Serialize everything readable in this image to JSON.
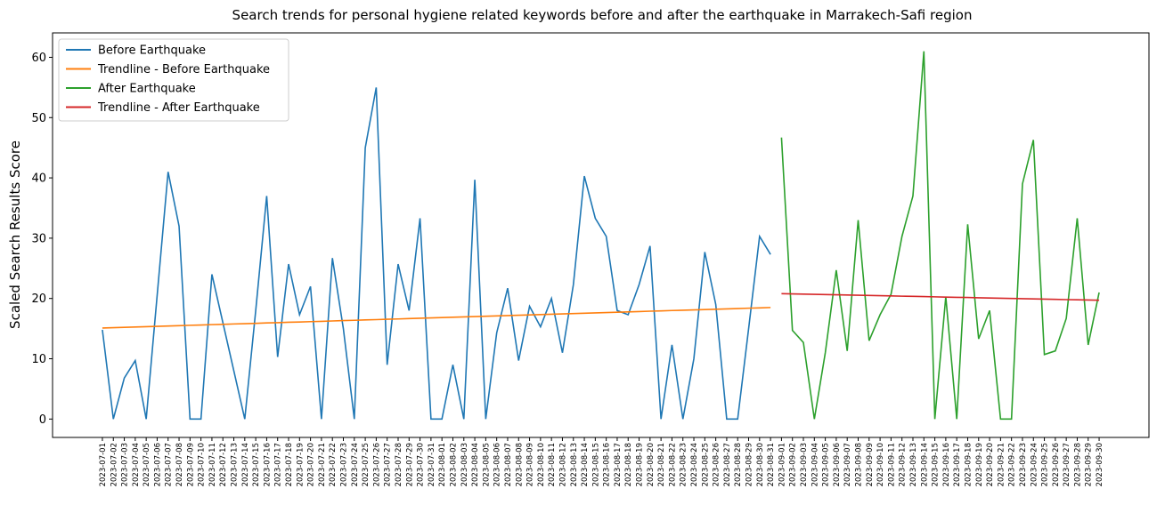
{
  "chart_data": {
    "type": "line",
    "title": "Search trends for personal hygiene related keywords before and after the earthquake in Marrakech-Safi region",
    "y_label": "Scaled Search Results Score",
    "categories": [
      "2023-07-01",
      "2023-07-02",
      "2023-07-03",
      "2023-07-04",
      "2023-07-05",
      "2023-07-06",
      "2023-07-07",
      "2023-07-08",
      "2023-07-09",
      "2023-07-10",
      "2023-07-11",
      "2023-07-12",
      "2023-07-13",
      "2023-07-14",
      "2023-07-15",
      "2023-07-16",
      "2023-07-17",
      "2023-07-18",
      "2023-07-19",
      "2023-07-20",
      "2023-07-21",
      "2023-07-22",
      "2023-07-23",
      "2023-07-24",
      "2023-07-25",
      "2023-07-26",
      "2023-07-27",
      "2023-07-28",
      "2023-07-29",
      "2023-07-30",
      "2023-07-31",
      "2023-08-01",
      "2023-08-02",
      "2023-08-03",
      "2023-08-04",
      "2023-08-05",
      "2023-08-06",
      "2023-08-07",
      "2023-08-08",
      "2023-08-09",
      "2023-08-10",
      "2023-08-11",
      "2023-08-12",
      "2023-08-13",
      "2023-08-14",
      "2023-08-15",
      "2023-08-16",
      "2023-08-17",
      "2023-08-18",
      "2023-08-19",
      "2023-08-20",
      "2023-08-21",
      "2023-08-22",
      "2023-08-23",
      "2023-08-24",
      "2023-08-25",
      "2023-08-26",
      "2023-08-27",
      "2023-08-28",
      "2023-08-29",
      "2023-08-30",
      "2023-08-31",
      "2023-09-01",
      "2023-09-02",
      "2023-09-03",
      "2023-09-04",
      "2023-09-05",
      "2023-09-06",
      "2023-09-07",
      "2023-09-08",
      "2023-09-09",
      "2023-09-10",
      "2023-09-11",
      "2023-09-12",
      "2023-09-13",
      "2023-09-14",
      "2023-09-15",
      "2023-09-16",
      "2023-09-17",
      "2023-09-18",
      "2023-09-19",
      "2023-09-20",
      "2023-09-21",
      "2023-09-22",
      "2023-09-23",
      "2023-09-24",
      "2023-09-25",
      "2023-09-26",
      "2023-09-27",
      "2023-09-28",
      "2023-09-29",
      "2023-09-30"
    ],
    "series": [
      {
        "name": "Before Earthquake",
        "color": "#1f77b4",
        "values": [
          14.8,
          0,
          6.8,
          9.7,
          0,
          20.5,
          41,
          32,
          0,
          0,
          24,
          16,
          8,
          0,
          18,
          37,
          10.3,
          25.7,
          17.3,
          22,
          0,
          26.7,
          15,
          0,
          45,
          55,
          9,
          25.7,
          18,
          33.3,
          0,
          0,
          9,
          0,
          39.7,
          0,
          14.3,
          21.7,
          9.7,
          18.7,
          15.3,
          20,
          11,
          22.3,
          40.3,
          33.3,
          30.3,
          18,
          17.3,
          22.3,
          28.7,
          0,
          12.3,
          0,
          10,
          27.7,
          19,
          0,
          0,
          15,
          30.3,
          27.3,
          null,
          null,
          null,
          null,
          null,
          null,
          null,
          null,
          null,
          null,
          null,
          null,
          null,
          null,
          null,
          null,
          null,
          null,
          null,
          null,
          null,
          null,
          null,
          null,
          null,
          null,
          null,
          null,
          null,
          null
        ]
      },
      {
        "name": "Trendline - Before Earthquake",
        "color": "#ff7f0e",
        "values": [
          15.1,
          15.16,
          15.21,
          15.27,
          15.32,
          15.38,
          15.43,
          15.49,
          15.55,
          15.6,
          15.66,
          15.71,
          15.77,
          15.82,
          15.88,
          15.94,
          15.99,
          16.05,
          16.1,
          16.16,
          16.21,
          16.27,
          16.33,
          16.38,
          16.44,
          16.49,
          16.55,
          16.6,
          16.66,
          16.72,
          16.77,
          16.83,
          16.88,
          16.94,
          16.99,
          17.05,
          17.11,
          17.16,
          17.22,
          17.27,
          17.33,
          17.38,
          17.44,
          17.5,
          17.55,
          17.61,
          17.66,
          17.72,
          17.77,
          17.83,
          17.89,
          17.94,
          18.0,
          18.05,
          18.11,
          18.16,
          18.22,
          18.27,
          18.33,
          18.39,
          18.44,
          18.5,
          null,
          null,
          null,
          null,
          null,
          null,
          null,
          null,
          null,
          null,
          null,
          null,
          null,
          null,
          null,
          null,
          null,
          null,
          null,
          null,
          null,
          null,
          null,
          null,
          null,
          null,
          null,
          null,
          null,
          null
        ]
      },
      {
        "name": "After Earthquake",
        "color": "#2ca02c",
        "values": [
          null,
          null,
          null,
          null,
          null,
          null,
          null,
          null,
          null,
          null,
          null,
          null,
          null,
          null,
          null,
          null,
          null,
          null,
          null,
          null,
          null,
          null,
          null,
          null,
          null,
          null,
          null,
          null,
          null,
          null,
          null,
          null,
          null,
          null,
          null,
          null,
          null,
          null,
          null,
          null,
          null,
          null,
          null,
          null,
          null,
          null,
          null,
          null,
          null,
          null,
          null,
          null,
          null,
          null,
          null,
          null,
          null,
          null,
          null,
          null,
          null,
          null,
          46.7,
          14.7,
          12.7,
          0,
          11,
          24.7,
          11.3,
          33,
          13,
          17.3,
          20.7,
          30.3,
          37,
          61,
          0,
          20.3,
          0,
          32.3,
          13.3,
          18,
          0,
          0,
          39,
          46.3,
          10.7,
          11.3,
          16.7,
          33.3,
          12.3,
          21
        ]
      },
      {
        "name": "Trendline - After Earthquake",
        "color": "#d62728",
        "values": [
          null,
          null,
          null,
          null,
          null,
          null,
          null,
          null,
          null,
          null,
          null,
          null,
          null,
          null,
          null,
          null,
          null,
          null,
          null,
          null,
          null,
          null,
          null,
          null,
          null,
          null,
          null,
          null,
          null,
          null,
          null,
          null,
          null,
          null,
          null,
          null,
          null,
          null,
          null,
          null,
          null,
          null,
          null,
          null,
          null,
          null,
          null,
          null,
          null,
          null,
          null,
          null,
          null,
          null,
          null,
          null,
          null,
          null,
          null,
          null,
          null,
          null,
          20.8,
          20.76,
          20.72,
          20.69,
          20.65,
          20.61,
          20.57,
          20.53,
          20.5,
          20.46,
          20.42,
          20.38,
          20.35,
          20.31,
          20.27,
          20.23,
          20.19,
          20.16,
          20.12,
          20.08,
          20.04,
          20.0,
          19.97,
          19.93,
          19.89,
          19.85,
          19.81,
          19.78,
          19.74,
          19.7
        ]
      }
    ],
    "ylim": [
      -3.05,
      64.05
    ],
    "yticks": [
      0,
      10,
      20,
      30,
      40,
      50,
      60
    ],
    "legend": "upper left",
    "grid": false
  }
}
